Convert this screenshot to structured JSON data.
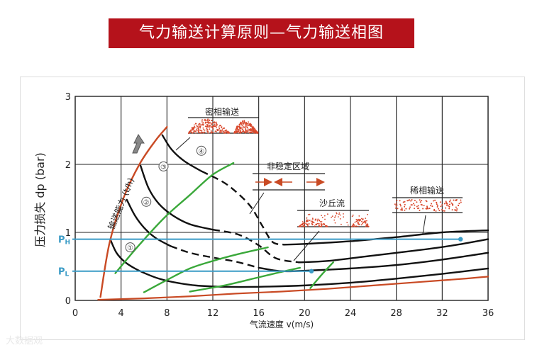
{
  "title": "气力输送计算原则—气力输送相图",
  "watermark": "大数据观",
  "chart_data": {
    "type": "line",
    "title": "气力输送计算原则—气力输送相图",
    "xlabel": "气流速度 v(m/s)",
    "ylabel": "压力损失 dp (bar)",
    "xlim": [
      0,
      36
    ],
    "ylim": [
      0,
      3
    ],
    "xticks": [
      0,
      4,
      8,
      12,
      16,
      20,
      24,
      28,
      32,
      36
    ],
    "xtick_labels": [
      "0",
      "4",
      "8",
      "12",
      "16",
      "20",
      "24",
      "28",
      "32",
      "36"
    ],
    "yticks": [
      0,
      1,
      2,
      3
    ],
    "ytick_labels": [
      "0",
      "1",
      "2",
      "3"
    ],
    "grid": true,
    "colors": {
      "black_curve": "#111111",
      "red_curve": "#c94a24",
      "green_curve": "#3aa83a",
      "blue_line": "#3a9bc6",
      "grid": "#222222",
      "particle": "#d9482c"
    },
    "capacity_axis_label": "输送能力 (t/h)",
    "series": [
      {
        "name": "capacity-1",
        "label": "①",
        "x": [
          3.1,
          3.6,
          4.3,
          5.2,
          6.2,
          7.3,
          8.5,
          10.5,
          13,
          16,
          20,
          24,
          28,
          32,
          36
        ],
        "y": [
          0.88,
          0.7,
          0.57,
          0.47,
          0.39,
          0.32,
          0.27,
          0.22,
          0.2,
          0.2,
          0.22,
          0.26,
          0.32,
          0.39,
          0.47
        ]
      },
      {
        "name": "capacity-2",
        "label": "②",
        "x": [
          4.5,
          5.2,
          6,
          7,
          8.3,
          10,
          12,
          14,
          16,
          18,
          20.5,
          24,
          28,
          32,
          36
        ],
        "y": [
          1.48,
          1.25,
          1.07,
          0.92,
          0.8,
          0.7,
          0.63,
          0.57,
          0.48,
          0.43,
          0.44,
          0.47,
          0.52,
          0.6,
          0.7
        ]
      },
      {
        "name": "capacity-3",
        "label": "③",
        "x": [
          5.7,
          6.4,
          7.3,
          8.5,
          10,
          12,
          14.2,
          16,
          17.5,
          19.5,
          22,
          26,
          30,
          33,
          36
        ],
        "y": [
          1.98,
          1.65,
          1.42,
          1.25,
          1.12,
          1.04,
          0.97,
          0.81,
          0.62,
          0.56,
          0.58,
          0.66,
          0.74,
          0.81,
          0.9
        ]
      },
      {
        "name": "capacity-4",
        "label": "④",
        "x": [
          7.6,
          8.4,
          9.5,
          11,
          12.8,
          14,
          15.3,
          16.3,
          17.2,
          18.2,
          20,
          24,
          28,
          32,
          36
        ],
        "y": [
          2.43,
          2.22,
          2.05,
          1.9,
          1.75,
          1.6,
          1.38,
          1.1,
          0.86,
          0.82,
          0.83,
          0.87,
          0.93,
          1.0,
          1.03
        ]
      },
      {
        "name": "zero-capacity-line",
        "label": "",
        "x": [
          2,
          6,
          10,
          14,
          18,
          22,
          26,
          30,
          34,
          36
        ],
        "y": [
          0.01,
          0.03,
          0.06,
          0.1,
          0.13,
          0.17,
          0.22,
          0.27,
          0.32,
          0.35
        ]
      },
      {
        "name": "capacity-boundary",
        "label": "",
        "x": [
          2.2,
          3.0,
          4.2,
          5.6,
          7.0,
          8.0
        ],
        "y": [
          0.05,
          0.85,
          1.5,
          2.0,
          2.35,
          2.55
        ]
      },
      {
        "name": "dense-dilute-transition",
        "label": "",
        "x": [
          3.5,
          5.5,
          7.8,
          10,
          12,
          13.8
        ],
        "y": [
          0.4,
          0.8,
          1.22,
          1.55,
          1.85,
          2.02
        ]
      },
      {
        "name": "saltation-boundary",
        "label": "",
        "x": [
          6,
          8,
          10,
          12,
          14.2,
          16.8
        ],
        "y": [
          0.12,
          0.3,
          0.47,
          0.58,
          0.68,
          0.78
        ]
      },
      {
        "name": "pickup-boundary",
        "label": "",
        "x": [
          10,
          13,
          16,
          18,
          19.6
        ],
        "y": [
          0.13,
          0.22,
          0.34,
          0.42,
          0.48
        ]
      },
      {
        "name": "stable-boundary",
        "label": "",
        "x": [
          20.5,
          21.5,
          22.5
        ],
        "y": [
          0.18,
          0.38,
          0.56
        ]
      }
    ],
    "reference_lines": [
      {
        "name": "P-high-line",
        "label": "P",
        "subscript": "H",
        "y": 0.9,
        "x_end": 33.6
      },
      {
        "name": "P-low-line",
        "label": "P",
        "subscript": "L",
        "y": 0.43,
        "x_end": 20.6
      }
    ],
    "annotations": [
      {
        "name": "dense-phase-label",
        "text": "密相输送"
      },
      {
        "name": "unstable-zone-label",
        "text": "非稳定区域"
      },
      {
        "name": "dune-flow-label",
        "text": "沙丘流"
      },
      {
        "name": "dilute-phase-label",
        "text": "稀相输送"
      }
    ]
  }
}
